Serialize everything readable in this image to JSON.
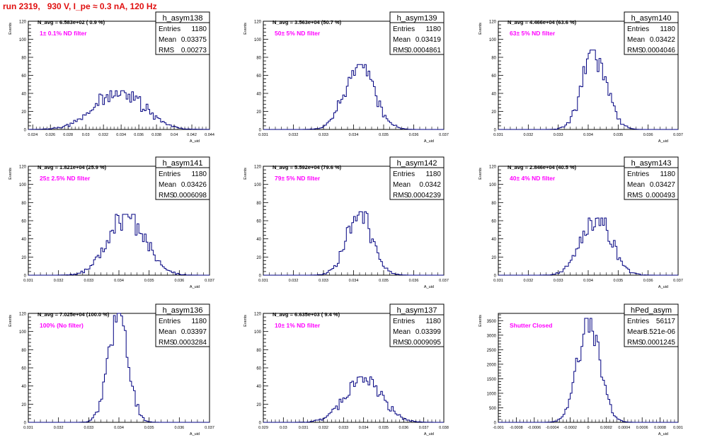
{
  "page_title": "run 2319,   930 V, I_pe ≈ 0.3 nA, 120 Hz",
  "colors": {
    "histogram": "#000080",
    "annotation": "#ff00ff",
    "title": "#e01010",
    "frame": "#000000"
  },
  "chart_data": [
    {
      "type": "histogram",
      "name": "h_asym138",
      "stats": {
        "Entries": "1180",
        "Mean": "0.03375",
        "RMS": "0.00273"
      },
      "navg": "N_avg = 6.583e+02 ( 0.9 %)",
      "annotation": "1± 0.1% ND filter",
      "ylabel": "Events",
      "xlabel": "A_uid",
      "xlim": [
        0.0235,
        0.044
      ],
      "ylim": [
        0,
        120
      ],
      "xticks": [
        0.024,
        0.026,
        0.028,
        0.03,
        0.032,
        0.034,
        0.036,
        0.038,
        0.04,
        0.042,
        0.044
      ],
      "xtick_labels": [
        "0.024",
        "0.026",
        "0.028",
        "0.03",
        "0.032",
        "0.034",
        "0.036",
        "0.038",
        "0.04",
        "0.042",
        "0.044"
      ],
      "yticks": [
        0,
        20,
        40,
        60,
        80,
        100,
        120
      ],
      "mean": 0.03375,
      "rms": 0.00273,
      "peak": 43,
      "noise_seed": 138
    },
    {
      "type": "histogram",
      "name": "h_asym139",
      "stats": {
        "Entries": "1180",
        "Mean": "0.03419",
        "RMS": "0.0004861"
      },
      "navg": "N_avg = 3.563e+04 (50.7 %)",
      "annotation": "50± 5% ND filter",
      "ylabel": "Events",
      "xlabel": "A_uid",
      "xlim": [
        0.031,
        0.037
      ],
      "ylim": [
        0,
        120
      ],
      "xticks": [
        0.031,
        0.032,
        0.033,
        0.034,
        0.035,
        0.036,
        0.037
      ],
      "xtick_labels": [
        "0.031",
        "0.032",
        "0.033",
        "0.034",
        "0.035",
        "0.036",
        "0.037"
      ],
      "yticks": [
        0,
        20,
        40,
        60,
        80,
        100,
        120
      ],
      "mean": 0.03419,
      "rms": 0.0004861,
      "peak": 72,
      "noise_seed": 139
    },
    {
      "type": "histogram",
      "name": "h_asym140",
      "stats": {
        "Entries": "1180",
        "Mean": "0.03422",
        "RMS": "0.0004046"
      },
      "navg": "N_avg = 4.466e+04 (63.6 %)",
      "annotation": "63± 5% ND filter",
      "ylabel": "Events",
      "xlabel": "A_uid",
      "xlim": [
        0.031,
        0.037
      ],
      "ylim": [
        0,
        120
      ],
      "xticks": [
        0.031,
        0.032,
        0.033,
        0.034,
        0.035,
        0.036,
        0.037
      ],
      "xtick_labels": [
        "0.031",
        "0.032",
        "0.033",
        "0.034",
        "0.035",
        "0.036",
        "0.037"
      ],
      "yticks": [
        0,
        20,
        40,
        60,
        80,
        100,
        120
      ],
      "mean": 0.03422,
      "rms": 0.0004046,
      "peak": 88,
      "noise_seed": 140
    },
    {
      "type": "histogram",
      "name": "h_asym141",
      "stats": {
        "Entries": "1180",
        "Mean": "0.03426",
        "RMS": "0.0006098"
      },
      "navg": "N_avg = 1.821e+04 (25.9 %)",
      "annotation": "25± 2.5% ND filter",
      "ylabel": "Events",
      "xlabel": "A_uid",
      "xlim": [
        0.031,
        0.037
      ],
      "ylim": [
        0,
        120
      ],
      "xticks": [
        0.031,
        0.032,
        0.033,
        0.034,
        0.035,
        0.036,
        0.037
      ],
      "xtick_labels": [
        "0.031",
        "0.032",
        "0.033",
        "0.034",
        "0.035",
        "0.036",
        "0.037"
      ],
      "yticks": [
        0,
        20,
        40,
        60,
        80,
        100,
        120
      ],
      "mean": 0.03426,
      "rms": 0.0006098,
      "peak": 67,
      "noise_seed": 141
    },
    {
      "type": "histogram",
      "name": "h_asym142",
      "stats": {
        "Entries": "1180",
        "Mean": "0.0342",
        "RMS": "0.0004239"
      },
      "navg": "N_avg = 5.592e+04 (79.6 %)",
      "annotation": "79± 5% ND filter",
      "ylabel": "Events",
      "xlabel": "A_uid",
      "xlim": [
        0.031,
        0.037
      ],
      "ylim": [
        0,
        120
      ],
      "xticks": [
        0.031,
        0.032,
        0.033,
        0.034,
        0.035,
        0.036,
        0.037
      ],
      "xtick_labels": [
        "0.031",
        "0.032",
        "0.033",
        "0.034",
        "0.035",
        "0.036",
        "0.037"
      ],
      "yticks": [
        0,
        20,
        40,
        60,
        80,
        100,
        120
      ],
      "mean": 0.0342,
      "rms": 0.0004239,
      "peak": 70,
      "noise_seed": 142
    },
    {
      "type": "histogram",
      "name": "h_asym143",
      "stats": {
        "Entries": "1180",
        "Mean": "0.03427",
        "RMS": "0.000493"
      },
      "navg": "N_avg = 2.846e+04 (40.5 %)",
      "annotation": "40± 4% ND filter",
      "ylabel": "Events",
      "xlabel": "A_uid",
      "xlim": [
        0.031,
        0.037
      ],
      "ylim": [
        0,
        120
      ],
      "xticks": [
        0.031,
        0.032,
        0.033,
        0.034,
        0.035,
        0.036,
        0.037
      ],
      "xtick_labels": [
        "0.031",
        "0.032",
        "0.033",
        "0.034",
        "0.035",
        "0.036",
        "0.037"
      ],
      "yticks": [
        0,
        20,
        40,
        60,
        80,
        100,
        120
      ],
      "mean": 0.03427,
      "rms": 0.000493,
      "peak": 63,
      "noise_seed": 143
    },
    {
      "type": "histogram",
      "name": "h_asym136",
      "stats": {
        "Entries": "1180",
        "Mean": "0.03397",
        "RMS": "0.0003284"
      },
      "navg": "N_avg = 7.025e+04 (100.0 %)",
      "annotation": "100% (No filter)",
      "ylabel": "Events",
      "xlabel": "A_uid",
      "xlim": [
        0.031,
        0.037
      ],
      "ylim": [
        0,
        120
      ],
      "xticks": [
        0.031,
        0.032,
        0.033,
        0.034,
        0.035,
        0.036,
        0.037
      ],
      "xtick_labels": [
        "0.031",
        "0.032",
        "0.033",
        "0.034",
        "0.035",
        "0.036",
        "0.037"
      ],
      "yticks": [
        0,
        20,
        40,
        60,
        80,
        100,
        120
      ],
      "mean": 0.03397,
      "rms": 0.0003284,
      "peak": 120,
      "noise_seed": 136
    },
    {
      "type": "histogram",
      "name": "h_asym137",
      "stats": {
        "Entries": "1180",
        "Mean": "0.03399",
        "RMS": "0.0009095"
      },
      "navg": "N_avg = 6.635e+03 ( 9.4 %)",
      "annotation": "10± 1% ND filter",
      "ylabel": "Events",
      "xlabel": "A_uid",
      "xlim": [
        0.029,
        0.038
      ],
      "ylim": [
        0,
        120
      ],
      "xticks": [
        0.029,
        0.03,
        0.031,
        0.032,
        0.033,
        0.034,
        0.035,
        0.036,
        0.037,
        0.038
      ],
      "xtick_labels": [
        "0.029",
        "0.03",
        "0.031",
        "0.032",
        "0.033",
        "0.034",
        "0.035",
        "0.036",
        "0.037",
        "0.038"
      ],
      "yticks": [
        0,
        20,
        40,
        60,
        80,
        100,
        120
      ],
      "mean": 0.03399,
      "rms": 0.0009095,
      "peak": 50,
      "noise_seed": 137
    },
    {
      "type": "histogram",
      "name": "hPed_asym",
      "stats": {
        "Entries": "56117",
        "Mean": "8.521e-06",
        "RMS": "0.0001245"
      },
      "navg": "",
      "annotation": "Shutter Closed",
      "ylabel": "Events",
      "xlabel": "A_uid",
      "xlim": [
        -0.001,
        0.001
      ],
      "ylim": [
        0,
        3750
      ],
      "xticks": [
        -0.001,
        -0.0008,
        -0.0006,
        -0.0004,
        -0.0002,
        0,
        0.0002,
        0.0004,
        0.0006,
        0.0008,
        0.001
      ],
      "xtick_labels": [
        "-0.001",
        "-0.0008",
        "-0.0006",
        "-0.0004",
        "-0.0002",
        "0",
        "0.0002",
        "0.0004",
        "0.0006",
        "0.0008",
        "0.001"
      ],
      "yticks": [
        0,
        500,
        1000,
        1500,
        2000,
        2500,
        3000,
        3500
      ],
      "mean": 8.521e-06,
      "rms": 0.0001245,
      "peak": 3580,
      "noise_seed": 99
    }
  ]
}
